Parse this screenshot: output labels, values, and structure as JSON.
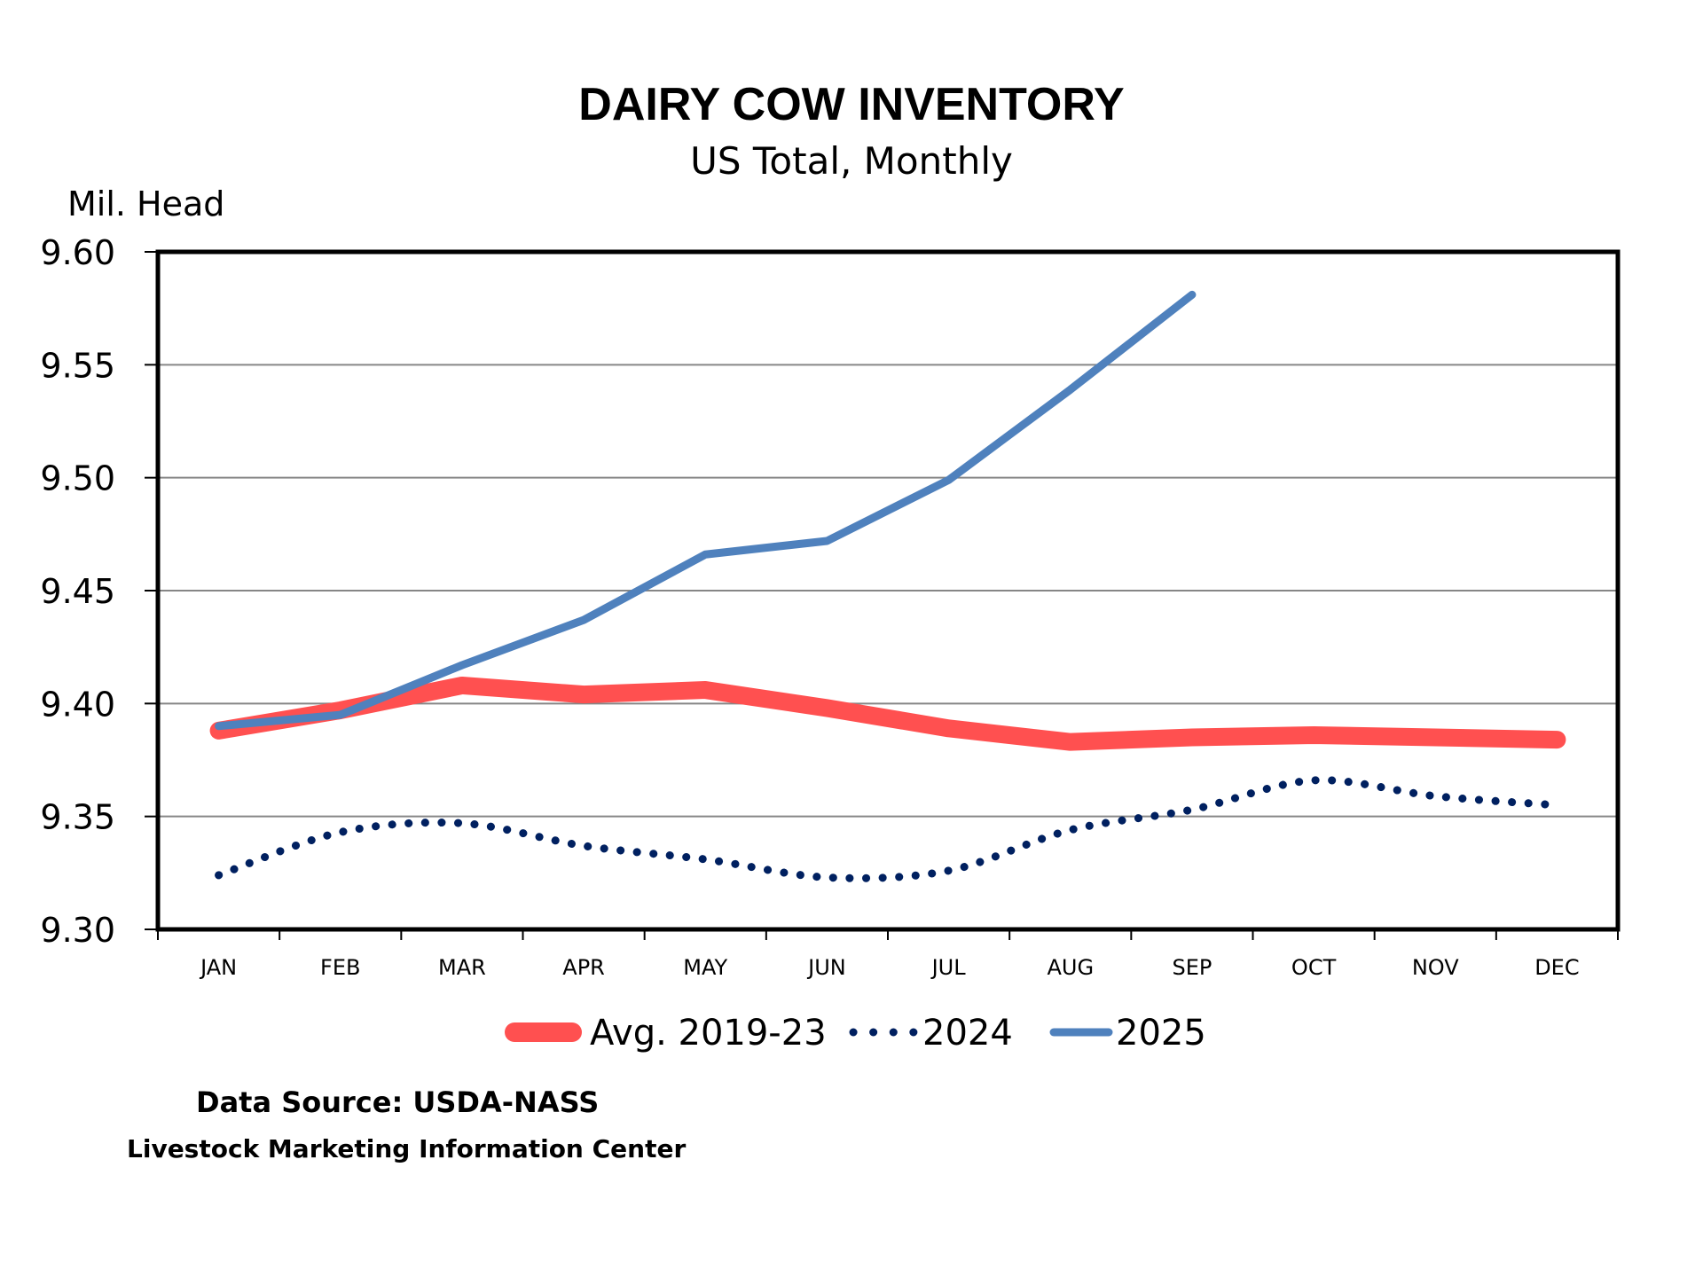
{
  "chart_data": {
    "type": "line",
    "title": "DAIRY COW INVENTORY",
    "subtitle": "US Total, Monthly",
    "xlabel": "",
    "ylabel": "Mil. Head",
    "categories": [
      "JAN",
      "FEB",
      "MAR",
      "APR",
      "MAY",
      "JUN",
      "JUL",
      "AUG",
      "SEP",
      "OCT",
      "NOV",
      "DEC"
    ],
    "ylim": [
      9.3,
      9.6
    ],
    "yticks": [
      9.3,
      9.35,
      9.4,
      9.45,
      9.5,
      9.55,
      9.6
    ],
    "ytick_labels": [
      "9.30",
      "9.35",
      "9.40",
      "9.45",
      "9.50",
      "9.55",
      "9.60"
    ],
    "grid": true,
    "legend_position": "bottom",
    "series": [
      {
        "name": "Avg. 2019-23",
        "color": "#FF5050",
        "style": "solid-thick",
        "smooth": false,
        "values": [
          9.388,
          9.397,
          9.408,
          9.404,
          9.406,
          9.398,
          9.389,
          9.383,
          9.385,
          9.386,
          9.385,
          9.384
        ]
      },
      {
        "name": "2024",
        "color": "#002060",
        "style": "dotted",
        "smooth": true,
        "values": [
          9.324,
          9.343,
          9.347,
          9.337,
          9.331,
          9.323,
          9.326,
          9.344,
          9.353,
          9.366,
          9.359,
          9.355
        ]
      },
      {
        "name": "2025",
        "color": "#4F81BD",
        "style": "solid",
        "smooth": false,
        "values": [
          9.39,
          9.395,
          9.417,
          9.437,
          9.466,
          9.472,
          9.499,
          9.539,
          9.581,
          null,
          null,
          null
        ]
      }
    ]
  },
  "footer": {
    "source": "Data Source:  USDA-NASS",
    "org": "Livestock Marketing Information Center"
  }
}
